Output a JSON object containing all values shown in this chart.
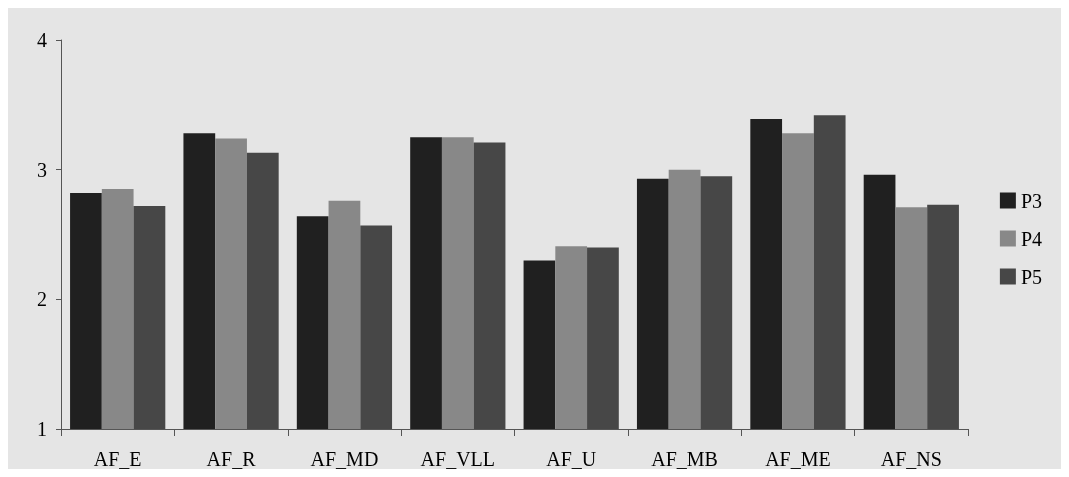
{
  "chart_data": {
    "type": "bar",
    "categories": [
      "AF_E",
      "AF_R",
      "AF_MD",
      "AF_VLL",
      "AF_U",
      "AF_MB",
      "AF_ME",
      "AF_NS"
    ],
    "series": [
      {
        "name": "P3",
        "color": "#202020",
        "values": [
          2.82,
          3.28,
          2.64,
          3.25,
          2.3,
          2.93,
          3.39,
          2.96
        ]
      },
      {
        "name": "P4",
        "color": "#888888",
        "values": [
          2.85,
          3.24,
          2.76,
          3.25,
          2.41,
          3.0,
          3.28,
          2.71
        ]
      },
      {
        "name": "P5",
        "color": "#474747",
        "values": [
          2.72,
          3.13,
          2.57,
          3.21,
          2.4,
          2.95,
          3.42,
          2.73
        ]
      }
    ],
    "ylim": [
      1,
      4
    ],
    "yticks": [
      1,
      2,
      3,
      4
    ],
    "grid": false,
    "legend": "right"
  }
}
